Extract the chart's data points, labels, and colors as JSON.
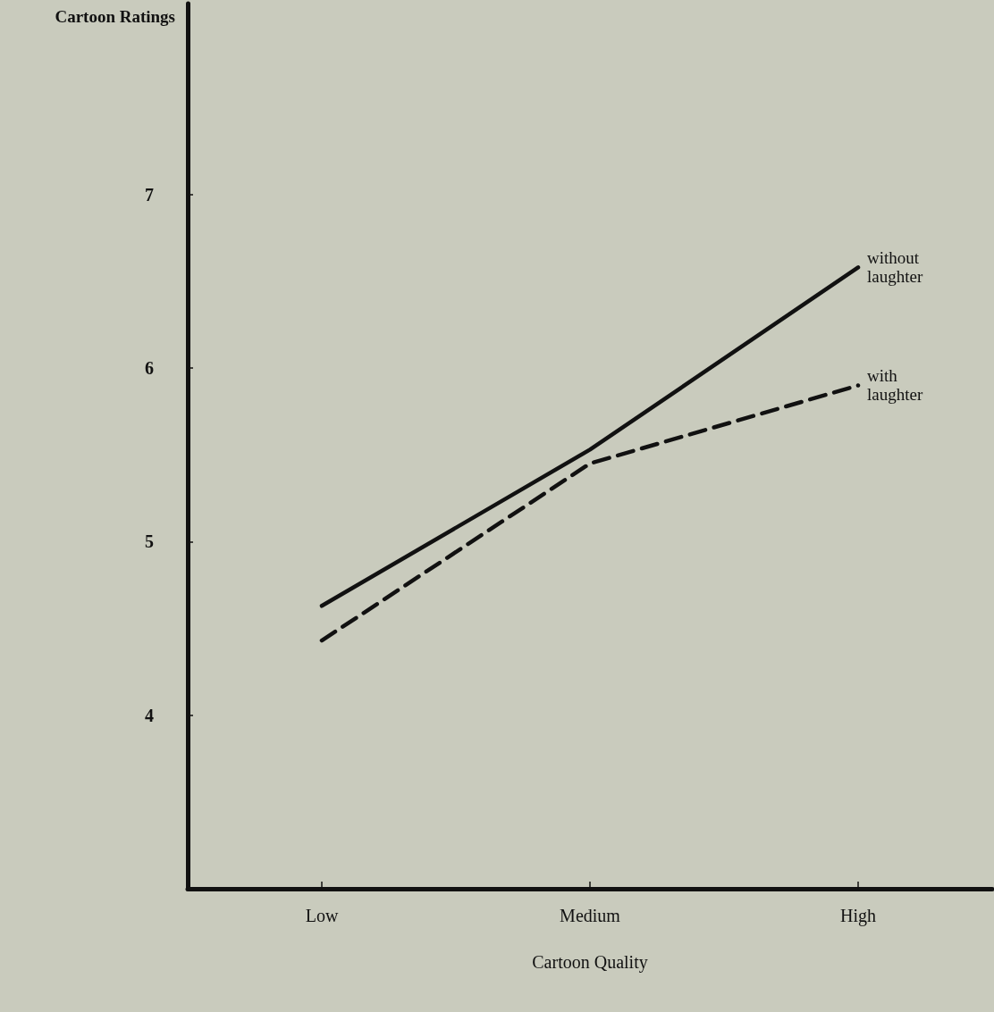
{
  "chart_data": {
    "type": "line",
    "xlabel": "Cartoon Quality",
    "ylabel": "Cartoon Ratings",
    "categories": [
      "Low",
      "Medium",
      "High"
    ],
    "series": [
      {
        "name": "without laughter",
        "color": "#111111",
        "line_style": "solid",
        "values": [
          4.63,
          5.53,
          6.58
        ]
      },
      {
        "name": "with laughter",
        "color": "#111111",
        "line_style": "dashed",
        "values": [
          4.43,
          5.45,
          5.9
        ]
      }
    ],
    "ylim": [
      3,
      8.1
    ],
    "yticks": [
      4,
      5,
      6,
      7
    ],
    "grid": false,
    "legend": false,
    "marker": "none"
  }
}
